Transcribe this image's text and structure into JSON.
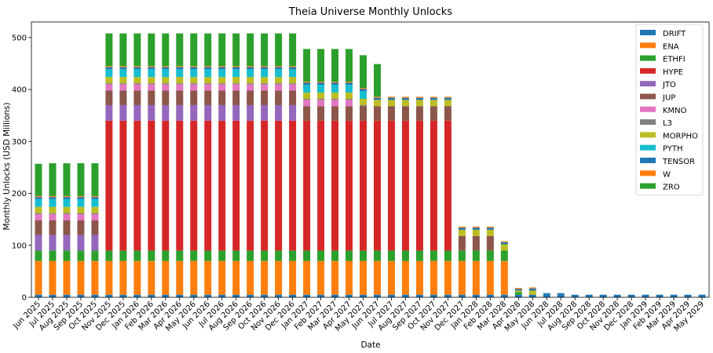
{
  "chart_data": {
    "type": "bar",
    "stacked": true,
    "title": "Theia Universe Monthly Unlocks",
    "xlabel": "Date",
    "ylabel": "Monthly Unlocks (USD Millions)",
    "ylim": [
      0,
      530
    ],
    "yticks": [
      0,
      100,
      200,
      300,
      400,
      500
    ],
    "grid": false,
    "legend_position": "top-right",
    "categories": [
      "Jun 2025",
      "Jul 2025",
      "Aug 2025",
      "Sep 2025",
      "Oct 2025",
      "Nov 2025",
      "Dec 2025",
      "Jan 2026",
      "Feb 2026",
      "Mar 2026",
      "Apr 2026",
      "May 2026",
      "Jun 2026",
      "Jul 2026",
      "Aug 2026",
      "Sep 2026",
      "Oct 2026",
      "Nov 2026",
      "Dec 2026",
      "Jan 2027",
      "Feb 2027",
      "Mar 2027",
      "Apr 2027",
      "May 2027",
      "Jun 2027",
      "Jul 2027",
      "Aug 2027",
      "Sep 2027",
      "Oct 2027",
      "Nov 2027",
      "Dec 2027",
      "Jan 2028",
      "Feb 2028",
      "Mar 2028",
      "Apr 2028",
      "May 2028",
      "Jun 2028",
      "Jul 2028",
      "Aug 2028",
      "Sep 2028",
      "Oct 2028",
      "Nov 2028",
      "Dec 2028",
      "Jan 2029",
      "Feb 2029",
      "Mar 2029",
      "Apr 2029",
      "May 2029"
    ],
    "series": [
      {
        "name": "DRIFT",
        "color": "#1f77b4",
        "values": [
          5,
          5,
          5,
          5,
          5,
          5,
          5,
          5,
          5,
          5,
          5,
          5,
          5,
          5,
          5,
          5,
          5,
          5,
          5,
          5,
          5,
          5,
          5,
          5,
          5,
          5,
          5,
          5,
          5,
          5,
          5,
          5,
          5,
          5,
          5,
          5,
          5,
          5,
          5,
          5,
          5,
          5,
          5,
          5,
          5,
          5,
          5,
          5
        ]
      },
      {
        "name": "ENA",
        "color": "#ff7f0e",
        "values": [
          65,
          65,
          65,
          65,
          65,
          65,
          65,
          65,
          65,
          65,
          65,
          65,
          65,
          65,
          65,
          65,
          65,
          65,
          65,
          65,
          65,
          65,
          65,
          65,
          65,
          65,
          65,
          65,
          65,
          65,
          65,
          65,
          65,
          65,
          0,
          0,
          0,
          0,
          0,
          0,
          0,
          0,
          0,
          0,
          0,
          0,
          0,
          0
        ]
      },
      {
        "name": "ETHFI",
        "color": "#2ca02c",
        "values": [
          20,
          20,
          20,
          20,
          20,
          20,
          20,
          20,
          20,
          20,
          20,
          20,
          20,
          20,
          20,
          20,
          20,
          20,
          20,
          20,
          20,
          20,
          20,
          20,
          20,
          20,
          20,
          20,
          20,
          20,
          20,
          20,
          20,
          20,
          5,
          0,
          0,
          0,
          0,
          0,
          0,
          0,
          0,
          0,
          0,
          0,
          0,
          0
        ]
      },
      {
        "name": "HYPE",
        "color": "#d62728",
        "values": [
          0,
          0,
          0,
          0,
          0,
          250,
          250,
          250,
          250,
          250,
          250,
          250,
          250,
          250,
          250,
          250,
          250,
          250,
          250,
          250,
          250,
          250,
          250,
          250,
          250,
          250,
          250,
          250,
          250,
          250,
          0,
          0,
          0,
          0,
          0,
          0,
          0,
          0,
          0,
          0,
          0,
          0,
          0,
          0,
          0,
          0,
          0,
          0
        ]
      },
      {
        "name": "JTO",
        "color": "#9467bd",
        "values": [
          30,
          30,
          30,
          30,
          30,
          30,
          30,
          30,
          30,
          30,
          30,
          30,
          30,
          30,
          30,
          30,
          30,
          30,
          30,
          0,
          0,
          0,
          0,
          0,
          0,
          0,
          0,
          0,
          0,
          0,
          0,
          0,
          0,
          0,
          0,
          0,
          0,
          0,
          0,
          0,
          0,
          0,
          0,
          0,
          0,
          0,
          0,
          0
        ]
      },
      {
        "name": "JUP",
        "color": "#8c564b",
        "values": [
          28,
          28,
          28,
          28,
          28,
          28,
          28,
          28,
          28,
          28,
          28,
          28,
          28,
          28,
          28,
          28,
          28,
          28,
          28,
          28,
          28,
          28,
          28,
          28,
          28,
          28,
          28,
          28,
          28,
          28,
          28,
          28,
          28,
          0,
          0,
          0,
          0,
          0,
          0,
          0,
          0,
          0,
          0,
          0,
          0,
          0,
          0,
          0
        ]
      },
      {
        "name": "KMNO",
        "color": "#e377c2",
        "values": [
          12,
          12,
          12,
          12,
          12,
          12,
          12,
          12,
          12,
          12,
          12,
          12,
          12,
          12,
          12,
          12,
          12,
          12,
          12,
          12,
          12,
          12,
          12,
          0,
          0,
          0,
          0,
          0,
          0,
          0,
          0,
          0,
          0,
          0,
          0,
          0,
          0,
          0,
          0,
          0,
          0,
          0,
          0,
          0,
          0,
          0,
          0,
          0
        ]
      },
      {
        "name": "L3",
        "color": "#7f7f7f",
        "values": [
          2,
          2,
          2,
          2,
          2,
          2,
          2,
          2,
          2,
          2,
          2,
          2,
          2,
          2,
          2,
          2,
          2,
          2,
          2,
          2,
          2,
          2,
          2,
          2,
          0,
          0,
          0,
          0,
          0,
          0,
          0,
          0,
          0,
          0,
          0,
          0,
          0,
          0,
          0,
          0,
          0,
          0,
          0,
          0,
          0,
          0,
          0,
          0
        ]
      },
      {
        "name": "MORPHO",
        "color": "#bcbd22",
        "values": [
          12,
          12,
          12,
          12,
          12,
          12,
          12,
          12,
          12,
          12,
          12,
          12,
          12,
          12,
          12,
          12,
          12,
          12,
          12,
          12,
          12,
          12,
          12,
          12,
          12,
          12,
          12,
          12,
          12,
          12,
          12,
          12,
          12,
          12,
          3,
          8,
          0,
          0,
          0,
          0,
          0,
          0,
          0,
          0,
          0,
          0,
          0,
          0
        ]
      },
      {
        "name": "PYTH",
        "color": "#17becf",
        "values": [
          15,
          15,
          15,
          15,
          15,
          15,
          15,
          15,
          15,
          15,
          15,
          15,
          15,
          15,
          15,
          15,
          15,
          15,
          15,
          15,
          15,
          15,
          15,
          15,
          0,
          0,
          0,
          0,
          0,
          0,
          0,
          0,
          0,
          0,
          0,
          0,
          0,
          0,
          0,
          0,
          0,
          0,
          0,
          0,
          0,
          0,
          0,
          0
        ]
      },
      {
        "name": "TENSOR",
        "color": "#1f77b4",
        "values": [
          4,
          4,
          4,
          4,
          4,
          4,
          4,
          4,
          4,
          4,
          4,
          4,
          4,
          4,
          4,
          4,
          4,
          4,
          4,
          4,
          4,
          4,
          4,
          4,
          4,
          4,
          4,
          4,
          4,
          4,
          4,
          4,
          4,
          4,
          3,
          4,
          3,
          3,
          0,
          0,
          0,
          0,
          0,
          0,
          0,
          0,
          0,
          0
        ]
      },
      {
        "name": "W",
        "color": "#ff7f0e",
        "values": [
          2,
          2,
          2,
          2,
          2,
          2,
          2,
          2,
          2,
          2,
          2,
          2,
          2,
          2,
          2,
          2,
          2,
          2,
          2,
          2,
          2,
          2,
          2,
          2,
          2,
          2,
          2,
          2,
          2,
          2,
          2,
          2,
          2,
          2,
          2,
          2,
          0,
          0,
          0,
          0,
          0,
          0,
          0,
          0,
          0,
          0,
          0,
          0
        ]
      },
      {
        "name": "ZRO",
        "color": "#2ca02c",
        "values": [
          62,
          63,
          63,
          63,
          63,
          63,
          63,
          63,
          63,
          63,
          63,
          63,
          63,
          63,
          63,
          63,
          63,
          63,
          63,
          63,
          63,
          63,
          63,
          63,
          63,
          0,
          0,
          0,
          0,
          0,
          0,
          0,
          0,
          0,
          0,
          0,
          0,
          0,
          0,
          0,
          0,
          0,
          0,
          0,
          0,
          0,
          0,
          0
        ]
      }
    ]
  }
}
